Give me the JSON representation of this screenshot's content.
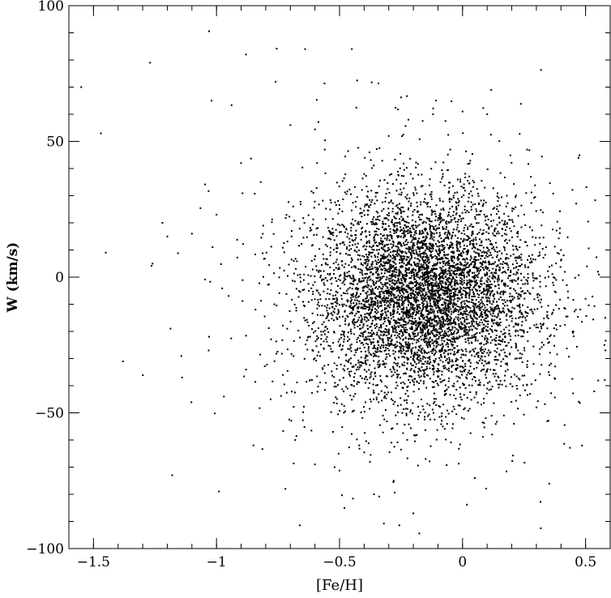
{
  "chart_data": {
    "type": "scatter",
    "title": "",
    "xlabel": "[Fe/H]",
    "ylabel": "W (km/s)",
    "xlim": [
      -1.6,
      0.6
    ],
    "ylim": [
      -100,
      100
    ],
    "x_ticks": [
      -1.5,
      -1,
      -0.5,
      0,
      0.5
    ],
    "x_tick_labels": [
      "−1.5",
      "−1",
      "−0.5",
      "0",
      "0.5"
    ],
    "y_ticks": [
      -100,
      -50,
      0,
      50,
      100
    ],
    "y_tick_labels": [
      "−100",
      "−50",
      "0",
      "50",
      "100"
    ],
    "grid": false,
    "marker_color": "#000000",
    "distribution": {
      "description": "dense cloud of stars",
      "x_center": -0.15,
      "y_center": -7,
      "x_spread": 0.22,
      "y_spread": 18
    },
    "series": [
      {
        "x": [
          -1.55,
          -1.47,
          -1.45,
          -1.38,
          -1.27,
          -1.26,
          -1.22,
          -1.2,
          -1.18,
          -1.14,
          -1.1,
          -1.02,
          -1.0,
          -0.99,
          -0.97,
          -0.9,
          -0.88,
          -0.85,
          -0.82,
          -0.78,
          -0.76,
          -0.72,
          -0.7,
          -0.68,
          -0.64,
          -0.6,
          -0.56,
          -0.52,
          -0.48,
          -0.45,
          -0.42,
          -0.4,
          -0.36,
          -0.3,
          -0.28,
          -0.22,
          -0.2,
          -0.15,
          -0.12,
          -0.08,
          -0.05,
          0.0,
          0.05,
          0.1,
          0.12,
          0.18,
          0.22,
          0.3,
          0.35,
          0.4,
          0.45,
          0.5,
          0.55,
          0.58
        ],
        "y": [
          70,
          53,
          9,
          -31,
          79,
          5,
          20,
          15,
          -73,
          -37,
          16,
          65,
          23,
          -79,
          -44,
          42,
          82,
          -62,
          35,
          -45,
          72,
          -78,
          56,
          -60,
          84,
          -69,
          47,
          -70,
          -85,
          84,
          -62,
          38,
          -80,
          52,
          -75,
          58,
          -87,
          -67,
          60,
          -55,
          47,
          61,
          -74,
          60,
          -58,
          30,
          -40,
          -48,
          -35,
          10,
          -20,
          -8,
          2,
          -15
        ]
      }
    ]
  }
}
